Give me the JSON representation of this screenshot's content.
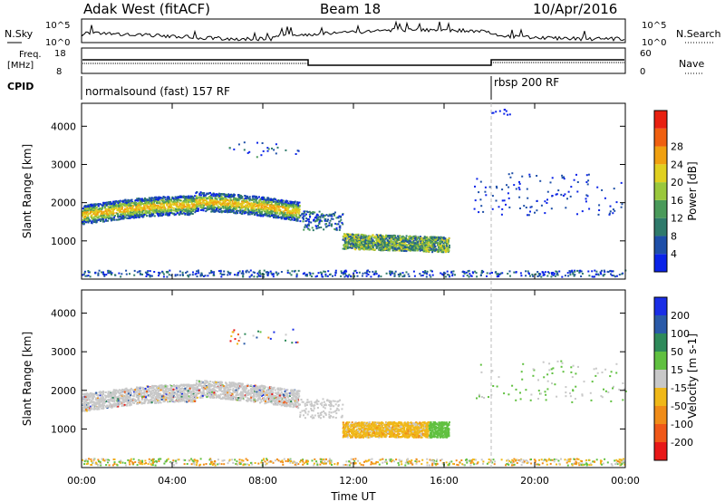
{
  "header": {
    "station": "Adak West (fitACF)",
    "beam": "Beam 18",
    "date": "10/Apr/2016"
  },
  "panels": {
    "nsky_label": "N.Sky",
    "nsearch_label": "N.Search",
    "noise_ticks": [
      "10^5",
      "10^0"
    ],
    "freq_label": "Freq.",
    "freq_unit": "[MHz]",
    "freq_ticks": [
      "18",
      "8"
    ],
    "nave_label": "Nave",
    "nave_ticks": [
      "60",
      "0"
    ],
    "cpid_label": "CPID",
    "cpid_segments": [
      "normalsound (fast) 157 RF",
      "rbsp 200 RF"
    ]
  },
  "chart_data": [
    {
      "type": "heatmap",
      "title": "",
      "ylabel": "Slant Range [km]",
      "xlabel": "",
      "ylim": [
        0,
        4600
      ],
      "yticks": [
        1000,
        2000,
        3000,
        4000
      ],
      "colorbar": {
        "label": "Power [dB]",
        "ticks": [
          4,
          8,
          12,
          16,
          20,
          24,
          28
        ],
        "colors": [
          "#0a23e8",
          "#1e4fa8",
          "#2f7a6b",
          "#4a9a5a",
          "#9ac83c",
          "#e0d020",
          "#f0a010",
          "#f06010",
          "#e82010"
        ]
      },
      "regions": [
        {
          "t0": 0.0,
          "t1": 9.6,
          "r0": 1500,
          "r1": 2100,
          "level": "high"
        },
        {
          "t0": 11.5,
          "t1": 16.2,
          "r0": 800,
          "r1": 1200,
          "level": "mid"
        },
        {
          "t0": 17.3,
          "t1": 24.0,
          "r0": 1800,
          "r1": 2700,
          "level": "sparse"
        }
      ]
    },
    {
      "type": "heatmap",
      "title": "",
      "ylabel": "Slant Range [km]",
      "xlabel": "Time UT",
      "ylim": [
        0,
        4600
      ],
      "yticks": [
        1000,
        2000,
        3000,
        4000
      ],
      "xticks": [
        "00:00",
        "04:00",
        "08:00",
        "12:00",
        "16:00",
        "20:00",
        "00:00"
      ],
      "colorbar": {
        "label": "Velocity [m s-1]",
        "ticks": [
          200,
          100,
          50,
          15,
          -15,
          -50,
          -100,
          -200
        ],
        "colors": [
          "#1a2ee6",
          "#2a5aa8",
          "#2e8a5a",
          "#60c040",
          "#c8c8c8",
          "#f0b818",
          "#f08c18",
          "#f05818",
          "#e81818"
        ]
      }
    }
  ]
}
